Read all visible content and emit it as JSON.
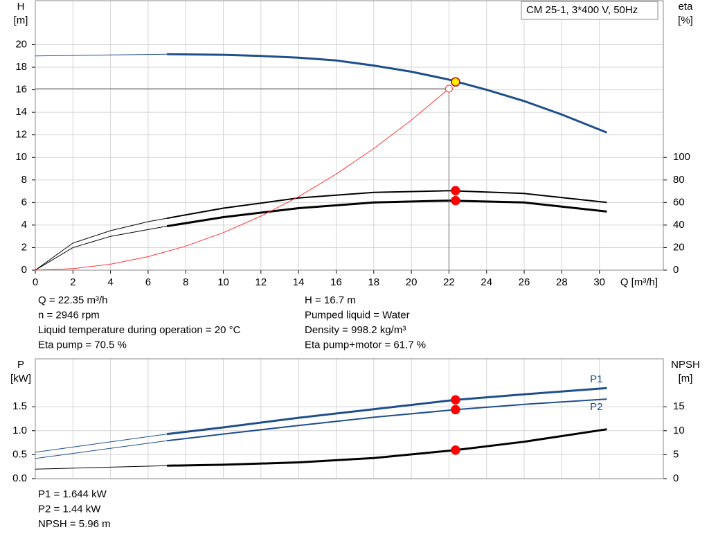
{
  "chart_data": [
    {
      "type": "line",
      "title": "CM 25-1, 3*400 V, 50Hz",
      "ylabel": "H",
      "yunit": "[m]",
      "y2label": "eta",
      "y2unit": "[%]",
      "xlabel": "Q [m³/h]",
      "xlim": [
        0,
        33.4
      ],
      "xticks": [
        0,
        2,
        4,
        6,
        8,
        10,
        12,
        14,
        16,
        18,
        20,
        22,
        24,
        26,
        28,
        30
      ],
      "ylim": [
        0,
        23.9
      ],
      "yticks": [
        0,
        2,
        4,
        6,
        8,
        10,
        12,
        14,
        16,
        18,
        20
      ],
      "y2lim": [
        0,
        239
      ],
      "y2ticks": [
        0,
        20,
        40,
        60,
        80,
        100
      ],
      "grid": true,
      "series": [
        {
          "x": [
            0,
            7
          ],
          "values": [
            19.0,
            19.15
          ],
          "color": "#1f4e8c",
          "width": 1,
          "axis": "y"
        },
        {
          "x": [
            7,
            10,
            12,
            14,
            16,
            18,
            20,
            22,
            24,
            26,
            28,
            30.4
          ],
          "values": [
            19.15,
            19.1,
            19.0,
            18.85,
            18.6,
            18.15,
            17.6,
            16.9,
            16.0,
            15.0,
            13.8,
            12.2
          ],
          "color": "#1f4e8c",
          "width": 3,
          "axis": "y"
        },
        {
          "x": [
            0,
            2,
            4,
            6,
            7
          ],
          "values": [
            0,
            24,
            35,
            43,
            46
          ],
          "color": "#000000",
          "width": 1,
          "axis": "y2"
        },
        {
          "x": [
            7,
            10,
            14,
            18,
            22,
            26,
            30.4
          ],
          "values": [
            46,
            55,
            64,
            69,
            70.5,
            68,
            60
          ],
          "color": "#000000",
          "width": 2,
          "axis": "y2"
        },
        {
          "x": [
            0,
            2,
            4,
            6,
            7
          ],
          "values": [
            0,
            20,
            30,
            36,
            39
          ],
          "color": "#000000",
          "width": 1,
          "axis": "y2"
        },
        {
          "x": [
            7,
            10,
            14,
            18,
            22,
            26,
            30.4
          ],
          "values": [
            39,
            47,
            55,
            60,
            61.7,
            60,
            52
          ],
          "color": "#000000",
          "width": 3,
          "axis": "y2"
        },
        {
          "x": [
            0,
            2,
            4,
            6,
            8,
            10,
            12,
            14,
            16,
            18,
            20,
            22
          ],
          "values": [
            0,
            0.13,
            0.53,
            1.2,
            2.13,
            3.33,
            4.79,
            6.52,
            8.52,
            10.78,
            13.31,
            16.1
          ],
          "color": "#ff3333",
          "width": 1,
          "axis": "y",
          "end_marker": "hollow",
          "ref_lines": true
        }
      ],
      "points": [
        {
          "x": 22.35,
          "value": 70.5,
          "color": "#ff0000",
          "axis": "y2"
        },
        {
          "x": 22.35,
          "value": 61.7,
          "color": "#ff0000",
          "axis": "y2"
        },
        {
          "x": 22.35,
          "value": 16.7,
          "color": "#ffee00",
          "axis": "y"
        }
      ],
      "notes": {
        "left": [
          "Q = 22.35 m³/h",
          "n = 2946 rpm",
          "Liquid temperature during operation = 20 °C",
          "Eta pump = 70.5 %"
        ],
        "right": [
          "H = 16.7 m",
          "Pumped liquid = Water",
          "Density = 998.2 kg/m³",
          "Eta pump+motor = 61.7 %"
        ]
      }
    },
    {
      "type": "line",
      "ylabel": "P",
      "yunit": "[kW]",
      "y2label": "NPSH",
      "y2unit": "[m]",
      "ylim": [
        0,
        2.5
      ],
      "yticks": [
        {
          "value": 0,
          "label": "0.0"
        },
        {
          "value": 0.5,
          "label": "0.5"
        },
        {
          "value": 1,
          "label": "1.0"
        },
        {
          "value": 1.5,
          "label": "1.5"
        }
      ],
      "y2lim": [
        0,
        25
      ],
      "y2ticks": [
        0,
        5,
        10,
        15
      ],
      "grid": true,
      "series": [
        {
          "x": [
            0,
            7
          ],
          "values": [
            0.55,
            0.93
          ],
          "color": "#1f4e8c",
          "width": 1,
          "axis": "y"
        },
        {
          "name": "P1",
          "x": [
            7,
            10,
            14,
            18,
            22.35,
            26,
            30.4
          ],
          "values": [
            0.93,
            1.07,
            1.27,
            1.45,
            1.644,
            1.76,
            1.89
          ],
          "color": "#1f4e8c",
          "width": 3,
          "axis": "y"
        },
        {
          "x": [
            0,
            7
          ],
          "values": [
            0.42,
            0.79
          ],
          "color": "#1f4e8c",
          "width": 1,
          "axis": "y"
        },
        {
          "name": "P2",
          "x": [
            7,
            10,
            14,
            18,
            22.35,
            26,
            30.4
          ],
          "values": [
            0.79,
            0.93,
            1.11,
            1.28,
            1.44,
            1.55,
            1.66
          ],
          "color": "#1f4e8c",
          "width": 2,
          "axis": "y"
        },
        {
          "x": [
            0,
            7
          ],
          "values": [
            2.0,
            2.7
          ],
          "color": "#000000",
          "width": 1,
          "axis": "y2"
        },
        {
          "x": [
            7,
            10,
            14,
            18,
            22.35,
            26,
            30.4
          ],
          "values": [
            2.7,
            2.9,
            3.4,
            4.3,
            5.96,
            7.7,
            10.3
          ],
          "color": "#000000",
          "width": 3,
          "axis": "y2"
        }
      ],
      "points": [
        {
          "x": 22.35,
          "value": 1.644,
          "color": "#ff0000",
          "axis": "y"
        },
        {
          "x": 22.35,
          "value": 1.44,
          "color": "#ff0000",
          "axis": "y"
        },
        {
          "x": 22.35,
          "value": 5.96,
          "color": "#ff0000",
          "axis": "y2"
        }
      ],
      "notes": {
        "left": [
          "P1 = 1.644 kW",
          "P2 = 1.44 kW",
          "NPSH = 5.96 m"
        ]
      }
    }
  ]
}
